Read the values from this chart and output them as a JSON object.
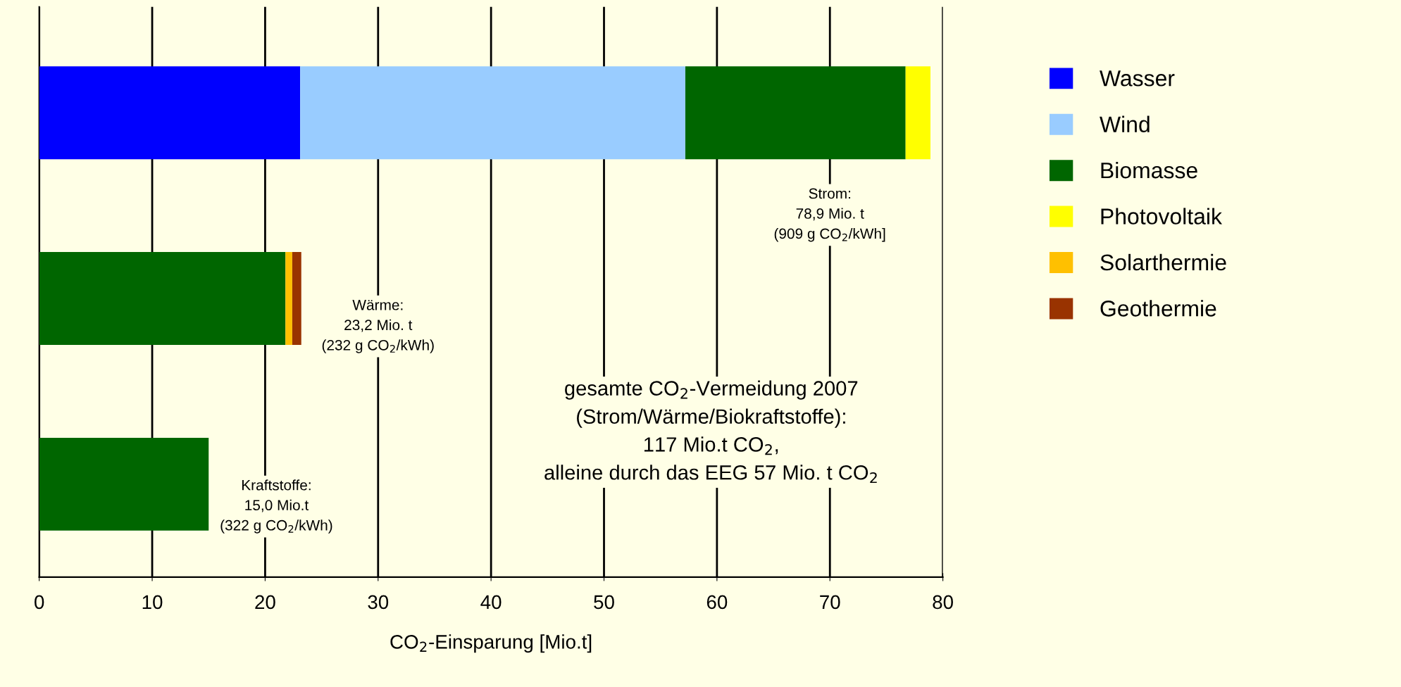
{
  "chart_data": {
    "type": "bar",
    "orientation": "horizontal",
    "stacked": true,
    "categories": [
      null,
      null,
      null
    ],
    "series": [
      {
        "name": "Wasser",
        "color": "#0000ff",
        "values": [
          23.1,
          0,
          0
        ]
      },
      {
        "name": "Wind",
        "color": "#99ccff",
        "values": [
          34.1,
          0,
          0
        ]
      },
      {
        "name": "Biomasse",
        "color": "#006600",
        "values": [
          19.5,
          21.8,
          15.0
        ]
      },
      {
        "name": "Photovoltaik",
        "color": "#ffff00",
        "values": [
          2.2,
          0,
          0
        ]
      },
      {
        "name": "Solarthermie",
        "color": "#ffc000",
        "values": [
          0,
          0.6,
          0
        ]
      },
      {
        "name": "Geothermie",
        "color": "#993300",
        "values": [
          0,
          0.8,
          0
        ]
      }
    ],
    "xlabel": "CO$_{2}$-Einsparung [Mio.t]",
    "xlim": [
      0,
      80
    ],
    "xticks": [
      0,
      10,
      20,
      30,
      40,
      50,
      60,
      70,
      80
    ],
    "grid": "x",
    "legend": "right",
    "annotations": [
      "Strom:\n78,9 Mio. t\n(909 g CO$_{2}$/kWh]",
      "Wärme:\n23,2 Mio. t\n(232 g CO$_{2}$/kWh)",
      "Kraftstoffe:\n15,0 Mio.t\n(322 g CO$_{2}$/kWh)",
      "gesamte CO$_{2}$-Vermeidung 2007\n(Strom/Wärme/Biokraftstoffe):\n117 Mio.t CO$_{2}$,\nalleine durch das EEG 57 Mio. t CO$_{2}$"
    ]
  }
}
